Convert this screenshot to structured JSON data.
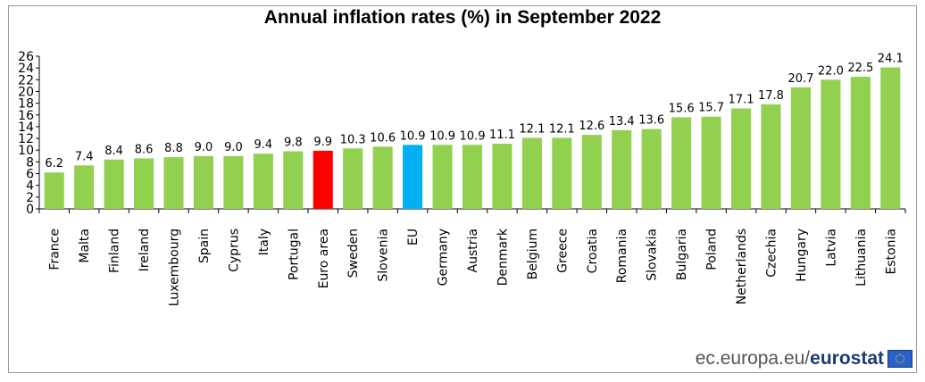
{
  "chart_data": {
    "type": "bar",
    "title": "Annual inflation rates (%) in September 2022",
    "categories": [
      "France",
      "Malta",
      "Finland",
      "Ireland",
      "Luxembourg",
      "Spain",
      "Cyprus",
      "Italy",
      "Portugal",
      "Euro area",
      "Sweden",
      "Slovenia",
      "EU",
      "Germany",
      "Austria",
      "Denmark",
      "Belgium",
      "Greece",
      "Croatia",
      "Romania",
      "Slovakia",
      "Bulgaria",
      "Poland",
      "Netherlands",
      "Czechia",
      "Hungary",
      "Latvia",
      "Lithuania",
      "Estonia"
    ],
    "values": [
      6.2,
      7.4,
      8.4,
      8.6,
      8.8,
      9.0,
      9.0,
      9.4,
      9.8,
      9.9,
      10.3,
      10.6,
      10.9,
      10.9,
      10.9,
      11.1,
      12.1,
      12.1,
      12.6,
      13.4,
      13.6,
      15.6,
      15.7,
      17.1,
      17.8,
      20.7,
      22.0,
      22.5,
      24.1
    ],
    "value_labels": [
      "6.2",
      "7.4",
      "8.4",
      "8.6",
      "8.8",
      "9.0",
      "9.0",
      "9.4",
      "9.8",
      "9.9",
      "10.3",
      "10.6",
      "10.9",
      "10.9",
      "10.9",
      "11.1",
      "12.1",
      "12.1",
      "12.6",
      "13.4",
      "13.6",
      "15.6",
      "15.7",
      "17.1",
      "17.8",
      "20.7",
      "22.0",
      "22.5",
      "24.1"
    ],
    "ylim": [
      0,
      26
    ],
    "yticks": [
      "0",
      "2",
      "4",
      "6",
      "8",
      "10",
      "12",
      "14",
      "16",
      "18",
      "20",
      "22",
      "24",
      "26"
    ],
    "colors": {
      "default": "#92d050",
      "highlight": {
        "Euro area": "#ff0000",
        "EU": "#00b0f0"
      },
      "text": "#000000"
    },
    "grid": false,
    "legend": "none"
  },
  "footer": {
    "source_prefix": "ec.europa.eu/",
    "source_brand": "eurostat",
    "logo_icon": "eu-flag-icon"
  }
}
